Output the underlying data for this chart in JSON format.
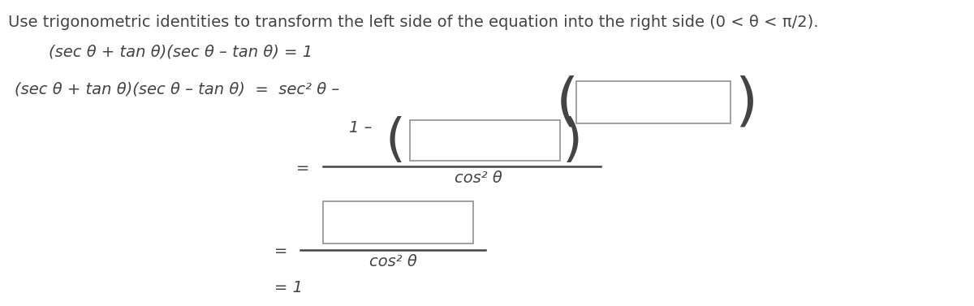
{
  "bg_color": "#ffffff",
  "text_color": "#444444",
  "box_color": "#999999",
  "font_size": 14,
  "title_font_size": 14,
  "title": "Use trigonometric identities to transform the left side of the equation into the right side (0 < θ < π/2).",
  "line1": "(sec θ + tan θ)(sec θ – tan θ) = 1",
  "line2_left": "(sec θ + tan θ)(sec θ – tan θ)  =  sec² θ –",
  "cos2": "cos² θ"
}
